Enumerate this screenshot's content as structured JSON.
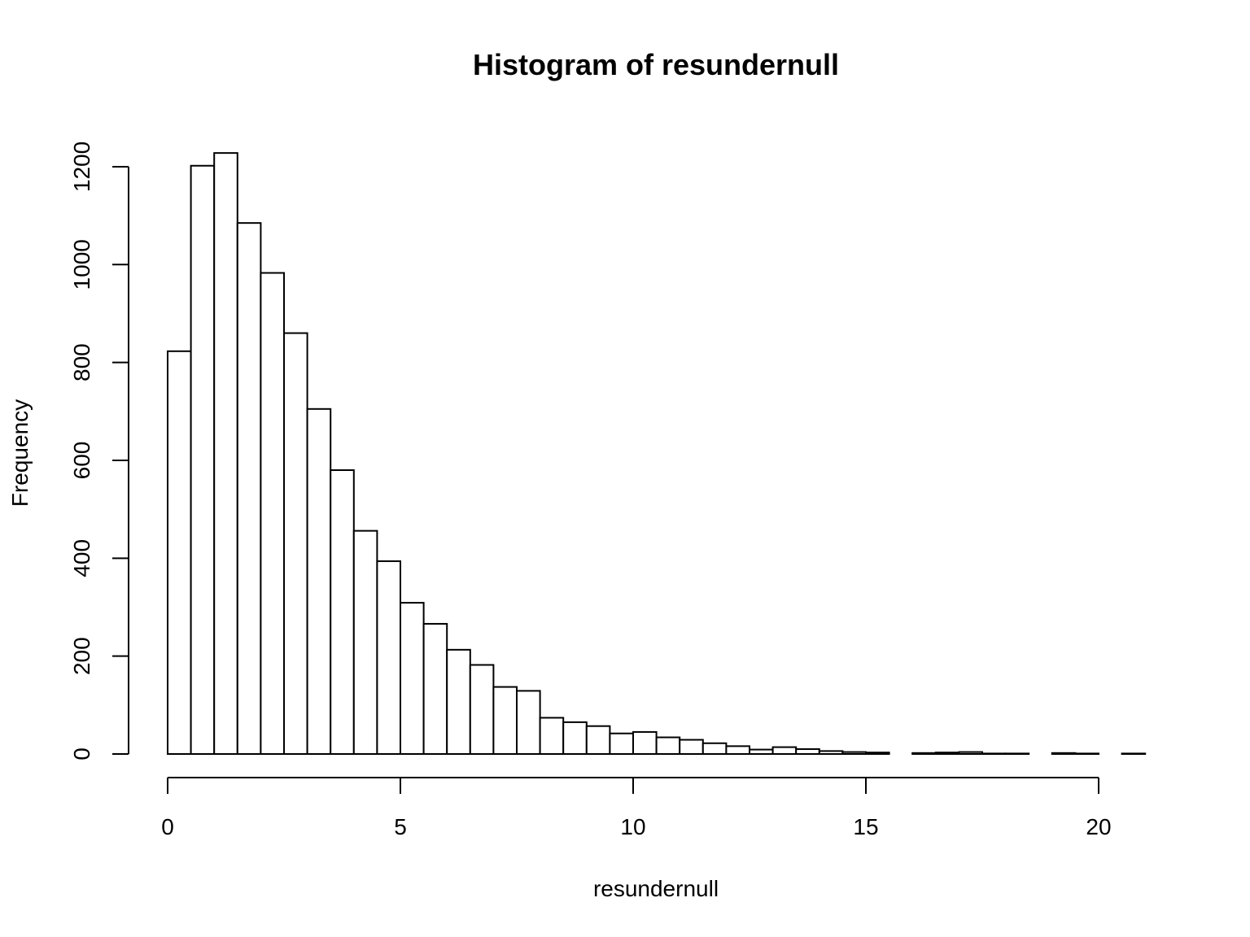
{
  "chart_data": {
    "type": "bar",
    "title": "Histogram of resundernull",
    "xlabel": "resundernull",
    "ylabel": "Frequency",
    "xlim": [
      0,
      21
    ],
    "ylim": [
      0,
      1200
    ],
    "bin_width": 0.5,
    "x_ticks": [
      0,
      5,
      10,
      15,
      20
    ],
    "y_ticks": [
      0,
      200,
      400,
      600,
      800,
      1000,
      1200
    ],
    "bins": [
      [
        0.0,
        0.5
      ],
      [
        0.5,
        1.0
      ],
      [
        1.0,
        1.5
      ],
      [
        1.5,
        2.0
      ],
      [
        2.0,
        2.5
      ],
      [
        2.5,
        3.0
      ],
      [
        3.0,
        3.5
      ],
      [
        3.5,
        4.0
      ],
      [
        4.0,
        4.5
      ],
      [
        4.5,
        5.0
      ],
      [
        5.0,
        5.5
      ],
      [
        5.5,
        6.0
      ],
      [
        6.0,
        6.5
      ],
      [
        6.5,
        7.0
      ],
      [
        7.0,
        7.5
      ],
      [
        7.5,
        8.0
      ],
      [
        8.0,
        8.5
      ],
      [
        8.5,
        9.0
      ],
      [
        9.0,
        9.5
      ],
      [
        9.5,
        10.0
      ],
      [
        10.0,
        10.5
      ],
      [
        10.5,
        11.0
      ],
      [
        11.0,
        11.5
      ],
      [
        11.5,
        12.0
      ],
      [
        12.0,
        12.5
      ],
      [
        12.5,
        13.0
      ],
      [
        13.0,
        13.5
      ],
      [
        13.5,
        14.0
      ],
      [
        14.0,
        14.5
      ],
      [
        14.5,
        15.0
      ],
      [
        15.0,
        15.5
      ],
      [
        15.5,
        16.0
      ],
      [
        16.0,
        16.5
      ],
      [
        16.5,
        17.0
      ],
      [
        17.0,
        17.5
      ],
      [
        17.5,
        18.0
      ],
      [
        18.0,
        18.5
      ],
      [
        18.5,
        19.0
      ],
      [
        19.0,
        19.5
      ],
      [
        19.5,
        20.0
      ],
      [
        20.0,
        20.5
      ],
      [
        20.5,
        21.0
      ]
    ],
    "values": [
      823,
      1202,
      1228,
      1085,
      983,
      860,
      705,
      580,
      456,
      394,
      309,
      266,
      213,
      182,
      137,
      129,
      74,
      65,
      57,
      42,
      45,
      34,
      29,
      22,
      16,
      9,
      14,
      10,
      6,
      4,
      3,
      0,
      2,
      3,
      4,
      1,
      1,
      0,
      2,
      1,
      0,
      1
    ],
    "grid": false,
    "legend": "none"
  }
}
